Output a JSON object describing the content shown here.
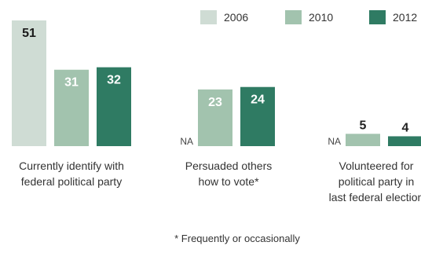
{
  "chart_data": {
    "type": "bar",
    "categories": [
      [
        "Currently identify with",
        "federal political party"
      ],
      [
        "Persuaded others",
        "how to vote*"
      ],
      [
        "Volunteered for",
        "political party in",
        "last federal election"
      ]
    ],
    "series": [
      {
        "name": "2006",
        "color": "#cfdcd4",
        "values": [
          51,
          null,
          null
        ]
      },
      {
        "name": "2010",
        "color": "#a2c3ae",
        "values": [
          31,
          23,
          5
        ]
      },
      {
        "name": "2012",
        "color": "#2f7b63",
        "values": [
          32,
          24,
          4
        ]
      }
    ],
    "missing_label": "NA",
    "footnote": "* Frequently or occasionally",
    "legend_position": "top-right",
    "ylim": [
      0,
      51
    ]
  }
}
